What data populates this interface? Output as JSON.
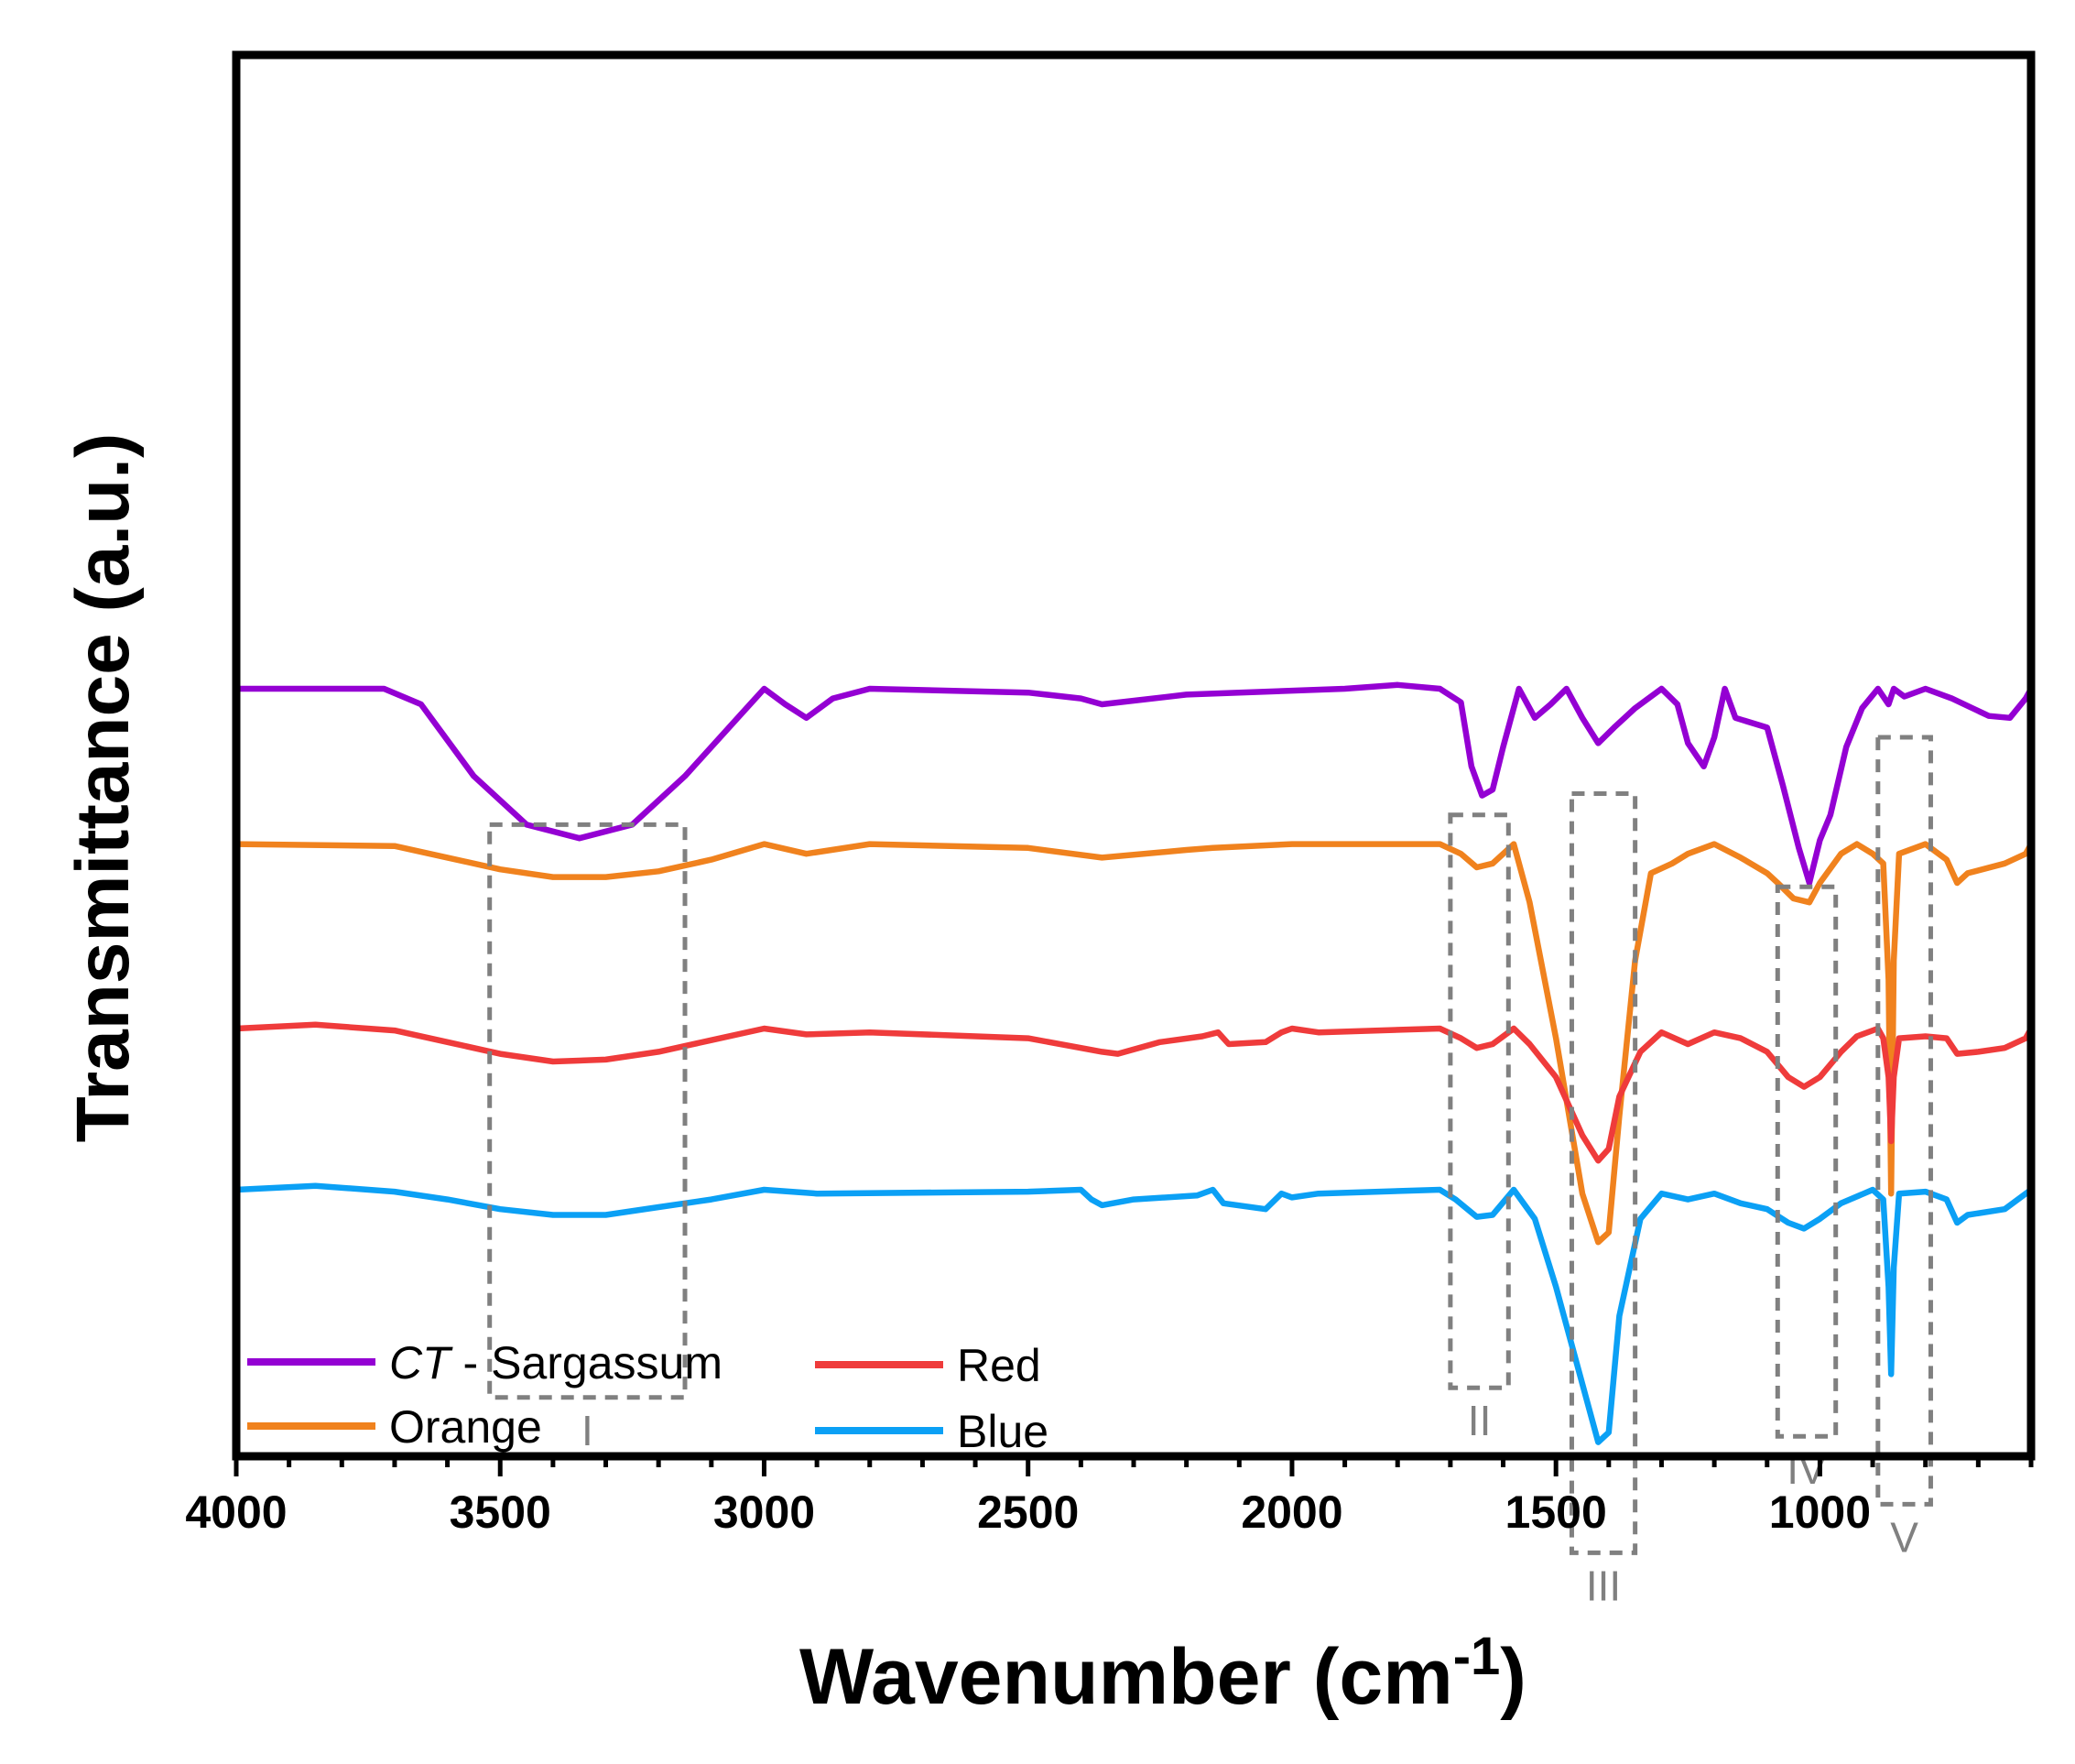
{
  "chart_data": {
    "type": "line",
    "xlabel": "Wavenumber (cm",
    "xlabel_sup": "-1",
    "xlabel_close": ")",
    "ylabel": "Transmittance  (a.u.)",
    "xlim": [
      4000,
      600
    ],
    "x_ticks": [
      "4000",
      "3500",
      "3000",
      "2500",
      "2000",
      "1500",
      "1000"
    ],
    "x_tick_values": [
      4000,
      3500,
      3000,
      2500,
      2000,
      1500,
      1000
    ],
    "yticks_shown": false,
    "grid": false,
    "legend_position": "bottom-left",
    "series": [
      {
        "name": "CT - Sargassum",
        "name_italic": "CT",
        "name_rest": " - Sargassum",
        "color": "#9400D3",
        "offset": 3.0,
        "points": [
          [
            4000,
            1.0
          ],
          [
            3720,
            1.0
          ],
          [
            3650,
            0.92
          ],
          [
            3550,
            0.55
          ],
          [
            3450,
            0.3
          ],
          [
            3350,
            0.23
          ],
          [
            3250,
            0.3
          ],
          [
            3150,
            0.55
          ],
          [
            3050,
            0.85
          ],
          [
            3000,
            1.0
          ],
          [
            2960,
            0.92
          ],
          [
            2920,
            0.85
          ],
          [
            2870,
            0.95
          ],
          [
            2800,
            1.0
          ],
          [
            2500,
            0.98
          ],
          [
            2400,
            0.95
          ],
          [
            2360,
            0.92
          ],
          [
            2200,
            0.97
          ],
          [
            2100,
            0.98
          ],
          [
            1900,
            1.0
          ],
          [
            1800,
            1.02
          ],
          [
            1720,
            1.0
          ],
          [
            1680,
            0.93
          ],
          [
            1660,
            0.6
          ],
          [
            1640,
            0.45
          ],
          [
            1620,
            0.48
          ],
          [
            1600,
            0.7
          ],
          [
            1570,
            1.0
          ],
          [
            1540,
            0.85
          ],
          [
            1510,
            0.92
          ],
          [
            1480,
            1.0
          ],
          [
            1450,
            0.85
          ],
          [
            1420,
            0.72
          ],
          [
            1390,
            0.8
          ],
          [
            1350,
            0.9
          ],
          [
            1300,
            1.0
          ],
          [
            1270,
            0.92
          ],
          [
            1250,
            0.72
          ],
          [
            1220,
            0.6
          ],
          [
            1200,
            0.75
          ],
          [
            1180,
            1.0
          ],
          [
            1160,
            0.85
          ],
          [
            1100,
            0.8
          ],
          [
            1070,
            0.5
          ],
          [
            1040,
            0.18
          ],
          [
            1020,
            0.0
          ],
          [
            1000,
            0.22
          ],
          [
            980,
            0.35
          ],
          [
            950,
            0.7
          ],
          [
            920,
            0.9
          ],
          [
            890,
            1.0
          ],
          [
            870,
            0.92
          ],
          [
            860,
            1.0
          ],
          [
            840,
            0.96
          ],
          [
            800,
            1.0
          ],
          [
            750,
            0.95
          ],
          [
            680,
            0.86
          ],
          [
            640,
            0.85
          ],
          [
            610,
            0.95
          ],
          [
            600,
            1.0
          ]
        ]
      },
      {
        "name": "Orange",
        "color": "#F0821E",
        "offset": 2.2,
        "points": [
          [
            4000,
            1.0
          ],
          [
            3700,
            0.99
          ],
          [
            3600,
            0.93
          ],
          [
            3500,
            0.87
          ],
          [
            3400,
            0.83
          ],
          [
            3300,
            0.83
          ],
          [
            3200,
            0.86
          ],
          [
            3100,
            0.92
          ],
          [
            3000,
            1.0
          ],
          [
            2920,
            0.95
          ],
          [
            2800,
            1.0
          ],
          [
            2500,
            0.98
          ],
          [
            2360,
            0.93
          ],
          [
            2200,
            0.97
          ],
          [
            2150,
            0.98
          ],
          [
            2000,
            1.0
          ],
          [
            1720,
            1.0
          ],
          [
            1680,
            0.95
          ],
          [
            1650,
            0.88
          ],
          [
            1620,
            0.9
          ],
          [
            1580,
            1.0
          ],
          [
            1550,
            0.7
          ],
          [
            1500,
            0.0
          ],
          [
            1450,
            -0.8
          ],
          [
            1420,
            -1.05
          ],
          [
            1400,
            -1.0
          ],
          [
            1380,
            -0.4
          ],
          [
            1350,
            0.4
          ],
          [
            1320,
            0.85
          ],
          [
            1280,
            0.9
          ],
          [
            1250,
            0.95
          ],
          [
            1200,
            1.0
          ],
          [
            1150,
            0.93
          ],
          [
            1100,
            0.85
          ],
          [
            1080,
            0.8
          ],
          [
            1050,
            0.72
          ],
          [
            1020,
            0.7
          ],
          [
            1000,
            0.8
          ],
          [
            960,
            0.95
          ],
          [
            930,
            1.0
          ],
          [
            900,
            0.95
          ],
          [
            880,
            0.9
          ],
          [
            870,
            0.3
          ],
          [
            865,
            -0.8
          ],
          [
            860,
            0.4
          ],
          [
            850,
            0.95
          ],
          [
            800,
            1.0
          ],
          [
            760,
            0.92
          ],
          [
            740,
            0.8
          ],
          [
            720,
            0.85
          ],
          [
            650,
            0.9
          ],
          [
            610,
            0.95
          ],
          [
            600,
            1.0
          ]
        ]
      },
      {
        "name": "Red",
        "color": "#EF3B3B",
        "offset": 1.25,
        "points": [
          [
            4000,
            1.0
          ],
          [
            3850,
            1.02
          ],
          [
            3700,
            0.99
          ],
          [
            3600,
            0.93
          ],
          [
            3500,
            0.87
          ],
          [
            3400,
            0.83
          ],
          [
            3300,
            0.84
          ],
          [
            3200,
            0.88
          ],
          [
            3100,
            0.94
          ],
          [
            3000,
            1.0
          ],
          [
            2920,
            0.97
          ],
          [
            2800,
            0.98
          ],
          [
            2500,
            0.95
          ],
          [
            2360,
            0.88
          ],
          [
            2330,
            0.87
          ],
          [
            2250,
            0.93
          ],
          [
            2170,
            0.96
          ],
          [
            2140,
            0.98
          ],
          [
            2120,
            0.92
          ],
          [
            2050,
            0.93
          ],
          [
            2020,
            0.98
          ],
          [
            2000,
            1.0
          ],
          [
            1950,
            0.98
          ],
          [
            1720,
            1.0
          ],
          [
            1680,
            0.95
          ],
          [
            1650,
            0.9
          ],
          [
            1620,
            0.92
          ],
          [
            1580,
            1.0
          ],
          [
            1550,
            0.92
          ],
          [
            1500,
            0.75
          ],
          [
            1450,
            0.45
          ],
          [
            1420,
            0.32
          ],
          [
            1400,
            0.38
          ],
          [
            1380,
            0.65
          ],
          [
            1340,
            0.88
          ],
          [
            1300,
            0.98
          ],
          [
            1250,
            0.92
          ],
          [
            1200,
            0.98
          ],
          [
            1150,
            0.95
          ],
          [
            1100,
            0.88
          ],
          [
            1060,
            0.75
          ],
          [
            1030,
            0.7
          ],
          [
            1000,
            0.75
          ],
          [
            960,
            0.88
          ],
          [
            930,
            0.96
          ],
          [
            890,
            1.0
          ],
          [
            880,
            0.95
          ],
          [
            870,
            0.75
          ],
          [
            865,
            0.42
          ],
          [
            860,
            0.75
          ],
          [
            850,
            0.95
          ],
          [
            800,
            0.96
          ],
          [
            760,
            0.95
          ],
          [
            740,
            0.87
          ],
          [
            700,
            0.88
          ],
          [
            650,
            0.9
          ],
          [
            610,
            0.95
          ],
          [
            600,
            1.0
          ]
        ]
      },
      {
        "name": "Blue",
        "color": "#0BA0F5",
        "offset": 0.42,
        "points": [
          [
            4000,
            1.0
          ],
          [
            3850,
            1.02
          ],
          [
            3700,
            0.99
          ],
          [
            3600,
            0.95
          ],
          [
            3500,
            0.9
          ],
          [
            3400,
            0.87
          ],
          [
            3300,
            0.87
          ],
          [
            3200,
            0.91
          ],
          [
            3100,
            0.95
          ],
          [
            3000,
            1.0
          ],
          [
            2900,
            0.98
          ],
          [
            2500,
            0.99
          ],
          [
            2400,
            1.0
          ],
          [
            2380,
            0.95
          ],
          [
            2360,
            0.92
          ],
          [
            2300,
            0.95
          ],
          [
            2180,
            0.97
          ],
          [
            2150,
            1.0
          ],
          [
            2130,
            0.93
          ],
          [
            2050,
            0.9
          ],
          [
            2020,
            0.98
          ],
          [
            2000,
            0.96
          ],
          [
            1950,
            0.98
          ],
          [
            1720,
            1.0
          ],
          [
            1690,
            0.95
          ],
          [
            1650,
            0.86
          ],
          [
            1620,
            0.87
          ],
          [
            1580,
            1.0
          ],
          [
            1540,
            0.85
          ],
          [
            1500,
            0.5
          ],
          [
            1450,
            0.0
          ],
          [
            1420,
            -0.3
          ],
          [
            1400,
            -0.25
          ],
          [
            1380,
            0.35
          ],
          [
            1340,
            0.85
          ],
          [
            1300,
            0.98
          ],
          [
            1250,
            0.95
          ],
          [
            1200,
            0.98
          ],
          [
            1150,
            0.93
          ],
          [
            1100,
            0.9
          ],
          [
            1060,
            0.83
          ],
          [
            1030,
            0.8
          ],
          [
            1000,
            0.85
          ],
          [
            960,
            0.93
          ],
          [
            900,
            1.0
          ],
          [
            880,
            0.95
          ],
          [
            870,
            0.5
          ],
          [
            865,
            0.05
          ],
          [
            860,
            0.6
          ],
          [
            850,
            0.98
          ],
          [
            800,
            0.99
          ],
          [
            760,
            0.95
          ],
          [
            740,
            0.83
          ],
          [
            720,
            0.87
          ],
          [
            650,
            0.9
          ],
          [
            610,
            0.98
          ],
          [
            600,
            1.0
          ]
        ]
      }
    ],
    "regions": [
      {
        "label": "I",
        "x": [
          3520,
          3150
        ],
        "y": [
          0.35,
          3.3
        ]
      },
      {
        "label": "II",
        "x": [
          1700,
          1590
        ],
        "y": [
          0.4,
          3.35
        ]
      },
      {
        "label": "III",
        "x": [
          1470,
          1350
        ],
        "y": [
          -0.45,
          3.46
        ]
      },
      {
        "label": "IV",
        "x": [
          1080,
          970
        ],
        "y": [
          0.15,
          2.98
        ]
      },
      {
        "label": "V",
        "x": [
          890,
          790
        ],
        "y": [
          -0.2,
          3.75
        ]
      }
    ]
  }
}
